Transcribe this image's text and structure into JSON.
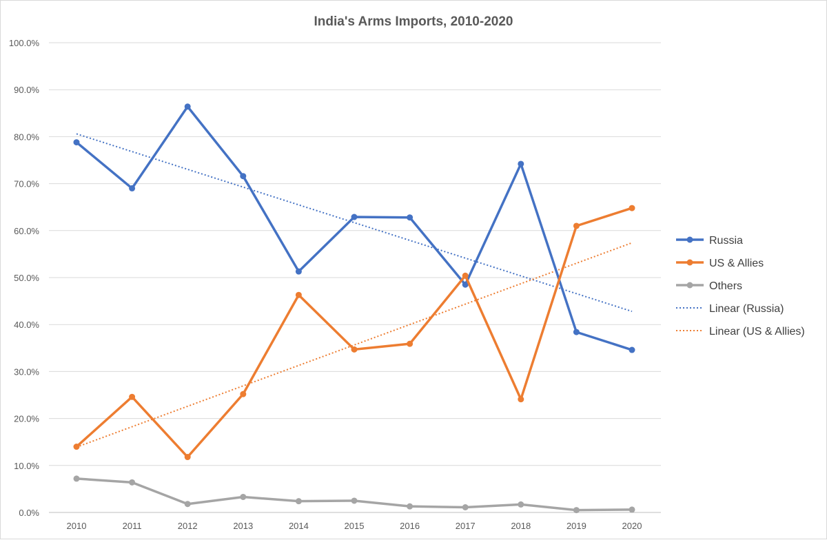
{
  "chart_data": {
    "type": "line",
    "title": "India's Arms Imports, 2010-2020",
    "xlabel": "",
    "ylabel": "",
    "categories": [
      "2010",
      "2011",
      "2012",
      "2013",
      "2014",
      "2015",
      "2016",
      "2017",
      "2018",
      "2019",
      "2020"
    ],
    "ylim": [
      0,
      100
    ],
    "y_ticks": [
      "0.0%",
      "10.0%",
      "20.0%",
      "30.0%",
      "40.0%",
      "50.0%",
      "60.0%",
      "70.0%",
      "80.0%",
      "90.0%",
      "100.0%"
    ],
    "grid": true,
    "legend_position": "right",
    "series": [
      {
        "name": "Russia",
        "color": "#4472C4",
        "values": [
          78.8,
          69.0,
          86.4,
          71.6,
          51.3,
          62.9,
          62.8,
          48.5,
          74.2,
          38.4,
          34.6
        ]
      },
      {
        "name": "US & Allies",
        "color": "#ED7D31",
        "values": [
          14.0,
          24.6,
          11.8,
          25.2,
          46.3,
          34.7,
          35.9,
          50.4,
          24.1,
          61.0,
          64.8
        ]
      },
      {
        "name": "Others",
        "color": "#A5A5A5",
        "values": [
          7.2,
          6.4,
          1.8,
          3.3,
          2.4,
          2.5,
          1.3,
          1.1,
          1.7,
          0.5,
          0.6
        ]
      }
    ],
    "trendlines": [
      {
        "name": "Linear (Russia)",
        "color": "#4472C4",
        "start": 80.6,
        "end": 42.8
      },
      {
        "name": "Linear (US & Allies)",
        "color": "#ED7D31",
        "start": 13.9,
        "end": 57.4
      }
    ]
  }
}
